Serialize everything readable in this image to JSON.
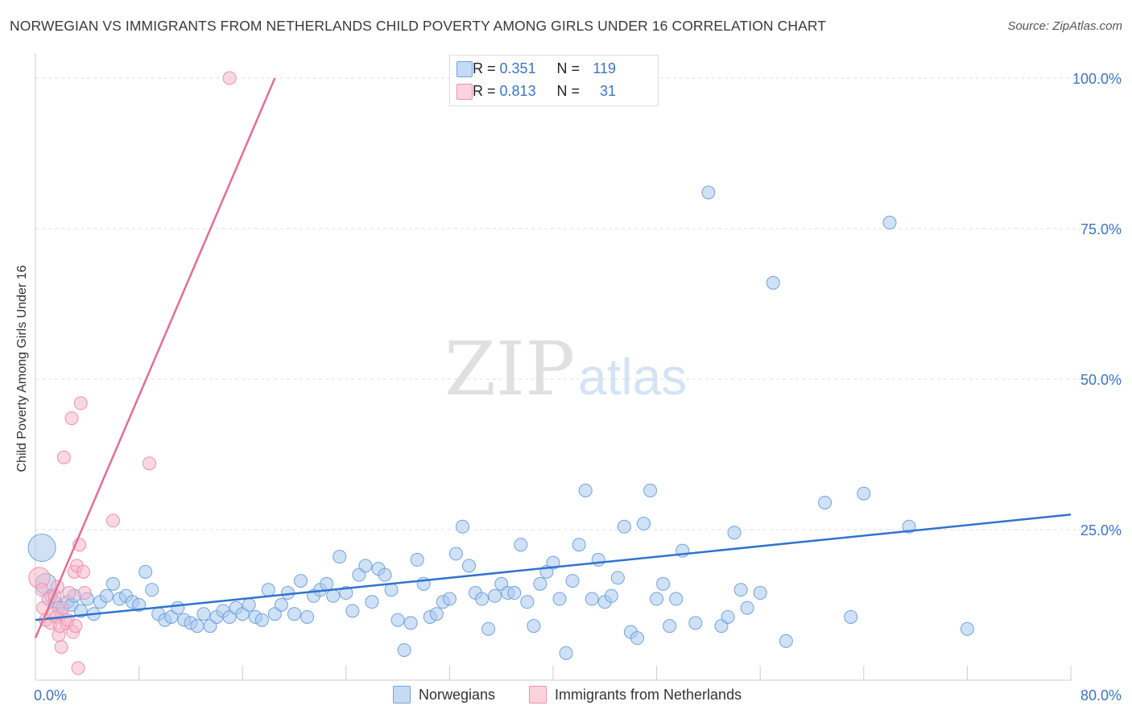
{
  "title": "NORWEGIAN VS IMMIGRANTS FROM NETHERLANDS CHILD POVERTY AMONG GIRLS UNDER 16 CORRELATION CHART",
  "source": "Source: ZipAtlas.com",
  "watermark": {
    "zip": "ZIP",
    "atlas": "atlas"
  },
  "legend_top": [
    {
      "r_label": "R =",
      "r_value": "0.351",
      "n_label": "N =",
      "n_value": "119",
      "color": "#a9c8ef"
    },
    {
      "r_label": "R =",
      "r_value": "0.813",
      "n_label": "N =",
      "n_value": "31",
      "color": "#f5b8cb"
    }
  ],
  "chart_data": {
    "type": "scatter",
    "title": "NORWEGIAN VS IMMIGRANTS FROM NETHERLANDS CHILD POVERTY AMONG GIRLS UNDER 16 CORRELATION CHART",
    "xlabel": "",
    "ylabel": "Child Poverty Among Girls Under 16",
    "xlim": [
      0,
      80
    ],
    "ylim": [
      0,
      100
    ],
    "x_tick_labels": [
      "0.0%",
      "80.0%"
    ],
    "y_ticks": [
      25,
      50,
      75,
      100
    ],
    "y_tick_labels": [
      "25.0%",
      "50.0%",
      "75.0%",
      "100.0%"
    ],
    "grid": true,
    "legend_position": "top-center",
    "series": [
      {
        "name": "Norwegians",
        "color": "#6fa3e0",
        "fill": "#a9c8ef",
        "trend": {
          "x": [
            0,
            80
          ],
          "y": [
            10.0,
            27.5
          ],
          "color": "#2f73cf"
        },
        "points": [
          [
            0.5,
            22
          ],
          [
            0.8,
            16
          ],
          [
            1.2,
            14
          ],
          [
            1.5,
            13
          ],
          [
            1.8,
            12
          ],
          [
            2,
            11
          ],
          [
            2.5,
            13
          ],
          [
            2.8,
            12.5
          ],
          [
            3,
            14
          ],
          [
            3.5,
            11.5
          ],
          [
            4,
            13.5
          ],
          [
            4.5,
            11
          ],
          [
            5,
            13
          ],
          [
            5.5,
            14
          ],
          [
            6,
            16
          ],
          [
            6.5,
            13.5
          ],
          [
            7,
            14
          ],
          [
            7.5,
            13
          ],
          [
            8,
            12.5
          ],
          [
            8.5,
            18
          ],
          [
            9,
            15
          ],
          [
            9.5,
            11
          ],
          [
            10,
            10
          ],
          [
            10.5,
            10.5
          ],
          [
            11,
            12
          ],
          [
            11.5,
            10
          ],
          [
            12,
            9.5
          ],
          [
            12.5,
            9
          ],
          [
            13,
            11
          ],
          [
            13.5,
            9
          ],
          [
            14,
            10.5
          ],
          [
            14.5,
            11.5
          ],
          [
            15,
            10.5
          ],
          [
            15.5,
            12
          ],
          [
            16,
            11
          ],
          [
            16.5,
            12.5
          ],
          [
            17,
            10.5
          ],
          [
            17.5,
            10
          ],
          [
            18,
            15
          ],
          [
            18.5,
            11
          ],
          [
            19,
            12.5
          ],
          [
            19.5,
            14.5
          ],
          [
            20,
            11
          ],
          [
            20.5,
            16.5
          ],
          [
            21,
            10.5
          ],
          [
            21.5,
            14
          ],
          [
            22,
            15
          ],
          [
            22.5,
            16
          ],
          [
            23,
            14
          ],
          [
            23.5,
            20.5
          ],
          [
            24,
            14.5
          ],
          [
            24.5,
            11.5
          ],
          [
            25,
            17.5
          ],
          [
            25.5,
            19
          ],
          [
            26,
            13
          ],
          [
            26.5,
            18.5
          ],
          [
            27,
            17.5
          ],
          [
            27.5,
            15
          ],
          [
            28,
            10
          ],
          [
            28.5,
            5
          ],
          [
            29,
            9.5
          ],
          [
            29.5,
            20
          ],
          [
            30,
            16
          ],
          [
            30.5,
            10.5
          ],
          [
            31,
            11
          ],
          [
            31.5,
            13
          ],
          [
            32,
            13.5
          ],
          [
            32.5,
            21
          ],
          [
            33,
            25.5
          ],
          [
            33.5,
            19
          ],
          [
            34,
            14.5
          ],
          [
            34.5,
            13.5
          ],
          [
            35,
            8.5
          ],
          [
            35.5,
            14
          ],
          [
            36,
            16
          ],
          [
            36.5,
            14.5
          ],
          [
            37,
            14.5
          ],
          [
            37.5,
            22.5
          ],
          [
            38,
            13
          ],
          [
            38.5,
            9
          ],
          [
            39,
            16
          ],
          [
            39.5,
            18
          ],
          [
            40,
            19.5
          ],
          [
            40.5,
            13.5
          ],
          [
            41,
            4.5
          ],
          [
            41.5,
            16.5
          ],
          [
            42,
            22.5
          ],
          [
            42.5,
            31.5
          ],
          [
            43,
            13.5
          ],
          [
            43.5,
            20
          ],
          [
            44,
            13
          ],
          [
            44.5,
            14
          ],
          [
            45,
            17
          ],
          [
            45.5,
            25.5
          ],
          [
            46,
            8
          ],
          [
            46.5,
            7
          ],
          [
            47,
            26
          ],
          [
            47.5,
            31.5
          ],
          [
            48,
            13.5
          ],
          [
            48.5,
            16
          ],
          [
            49,
            9
          ],
          [
            49.5,
            13.5
          ],
          [
            50,
            21.5
          ],
          [
            51,
            9.5
          ],
          [
            52,
            81
          ],
          [
            53,
            9
          ],
          [
            53.5,
            10.5
          ],
          [
            54,
            24.5
          ],
          [
            54.5,
            15
          ],
          [
            55,
            12
          ],
          [
            56,
            14.5
          ],
          [
            57,
            66
          ],
          [
            58,
            6.5
          ],
          [
            61,
            29.5
          ],
          [
            63,
            10.5
          ],
          [
            64,
            31
          ],
          [
            66,
            76
          ],
          [
            67.5,
            25.5
          ],
          [
            72,
            8.5
          ]
        ]
      },
      {
        "name": "Immigrants from Netherlands",
        "color": "#ee90ae",
        "fill": "#f5b8cb",
        "trend": {
          "x": [
            0,
            18.5
          ],
          "y": [
            7.0,
            100.0
          ],
          "color": "#e46d95"
        },
        "points": [
          [
            0.3,
            17
          ],
          [
            0.5,
            15
          ],
          [
            0.6,
            12
          ],
          [
            0.8,
            10
          ],
          [
            1,
            13.5
          ],
          [
            1.2,
            9.5
          ],
          [
            1.4,
            11
          ],
          [
            1.5,
            14
          ],
          [
            1.6,
            10.5
          ],
          [
            1.7,
            15.5
          ],
          [
            1.8,
            7.5
          ],
          [
            1.9,
            9
          ],
          [
            2,
            5.5
          ],
          [
            2.1,
            12
          ],
          [
            2.2,
            37
          ],
          [
            2.4,
            9.5
          ],
          [
            2.5,
            10
          ],
          [
            2.6,
            14.5
          ],
          [
            2.8,
            43.5
          ],
          [
            2.9,
            8
          ],
          [
            3,
            18
          ],
          [
            3.1,
            9
          ],
          [
            3.2,
            19
          ],
          [
            3.3,
            2
          ],
          [
            3.4,
            22.5
          ],
          [
            3.5,
            46
          ],
          [
            3.7,
            18
          ],
          [
            3.8,
            14.5
          ],
          [
            6,
            26.5
          ],
          [
            8.8,
            36
          ],
          [
            15,
            100
          ]
        ]
      }
    ]
  },
  "bottom_legend": [
    {
      "label": "Norwegians",
      "color": "#a9c8ef"
    },
    {
      "label": "Immigrants from Netherlands",
      "color": "#f5b8cb"
    }
  ]
}
